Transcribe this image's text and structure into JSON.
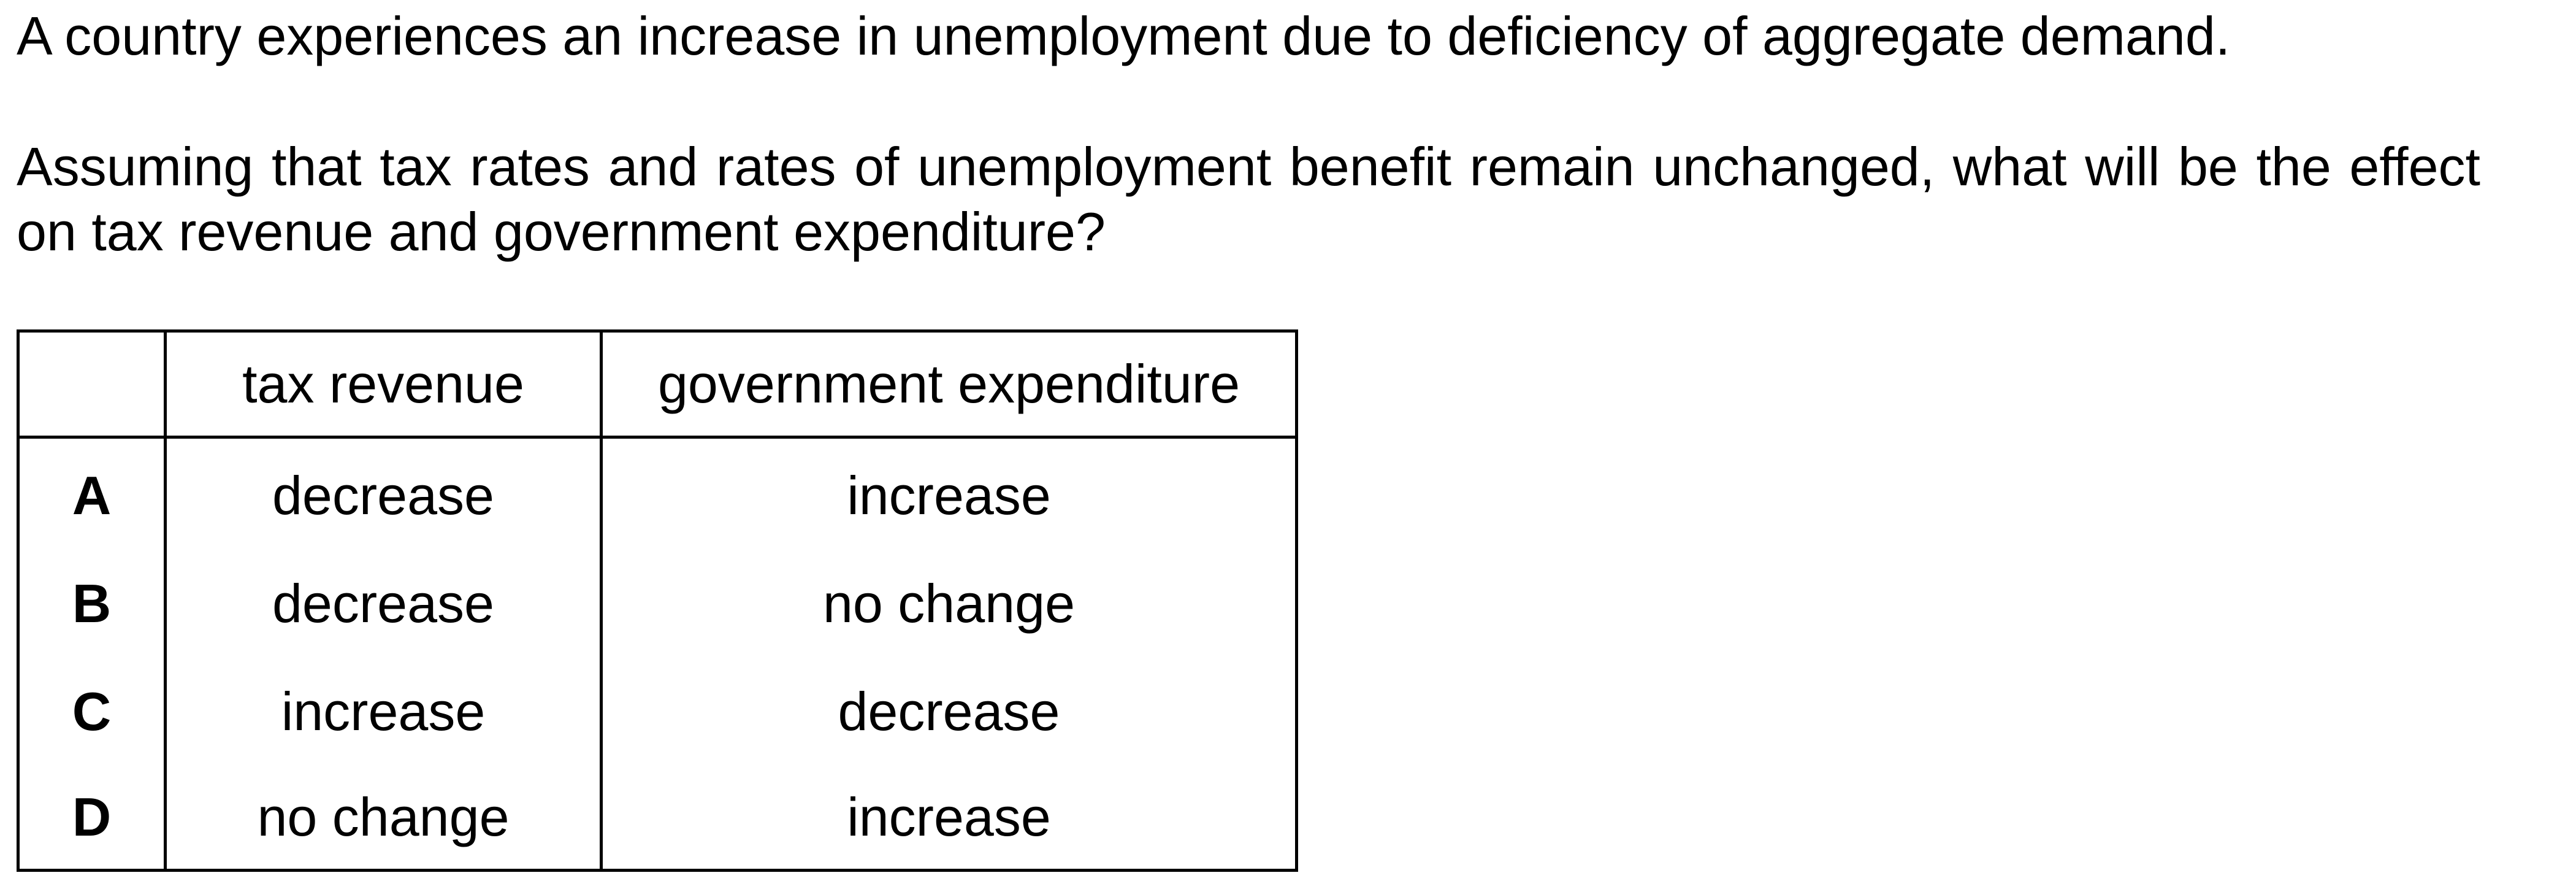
{
  "question": {
    "line1": "A country experiences an increase in unemployment due to deficiency of aggregate demand.",
    "stem": "Assuming that tax rates and rates of unemployment benefit remain unchanged, what will be the effect on tax revenue and government expenditure?"
  },
  "table": {
    "headers": [
      "tax revenue",
      "government expenditure"
    ],
    "rows": [
      {
        "key": "A",
        "tax": "decrease",
        "gov": "increase"
      },
      {
        "key": "B",
        "tax": "decrease",
        "gov": "no change"
      },
      {
        "key": "C",
        "tax": "increase",
        "gov": "decrease"
      },
      {
        "key": "D",
        "tax": "no change",
        "gov": "increase"
      }
    ]
  }
}
